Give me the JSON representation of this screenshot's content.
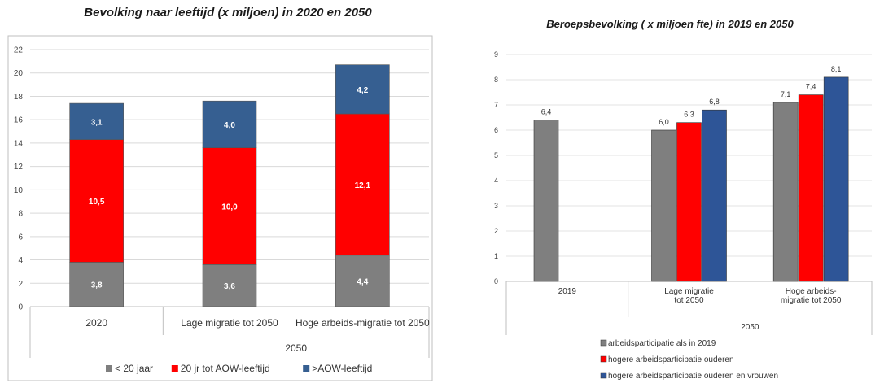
{
  "chart_data": [
    {
      "type": "bar",
      "stacked": true,
      "title": "Bevolking naar leeftijd (x miljoen) in 2020 en 2050",
      "categories": [
        "2020",
        "Lage migratie tot 2050",
        "Hoge arbeids-migratie tot 2050"
      ],
      "group_label": "2050",
      "ylim": [
        0,
        22
      ],
      "yticks": [
        0,
        2,
        4,
        6,
        8,
        10,
        12,
        14,
        16,
        18,
        20,
        22
      ],
      "grid": true,
      "legend_position": "bottom",
      "series": [
        {
          "name": "< 20 jaar",
          "values": [
            3.8,
            3.6,
            4.4
          ],
          "labels": [
            "3,8",
            "3,6",
            "4,4"
          ],
          "color": "#7f7f7f"
        },
        {
          "name": "20 jr tot AOW-leeftijd",
          "values": [
            10.5,
            10.0,
            12.1
          ],
          "labels": [
            "10,5",
            "10,0",
            "12,1"
          ],
          "color": "#ff0000"
        },
        {
          "name": ">AOW-leeftijd",
          "values": [
            3.1,
            4.0,
            4.2
          ],
          "labels": [
            "3,1",
            "4,0",
            "4,2"
          ],
          "color": "#365f91"
        }
      ]
    },
    {
      "type": "bar",
      "stacked": false,
      "title": "Beroepsbevolking ( x miljoen fte) in 2019 en 2050",
      "categories": [
        [
          "2019"
        ],
        [
          "Lage migratie",
          "tot 2050"
        ],
        [
          "Hoge arbeids-",
          "migratie tot 2050"
        ]
      ],
      "group_label": "2050",
      "ylim": [
        0,
        9
      ],
      "yticks": [
        0,
        1,
        2,
        3,
        4,
        5,
        6,
        7,
        8,
        9
      ],
      "grid": true,
      "legend_position": "bottom",
      "series": [
        {
          "name": "arbeidsparticipatie als in 2019",
          "values": [
            6.4,
            6.0,
            7.1
          ],
          "labels": [
            "6,4",
            "6,0",
            "7,1"
          ],
          "color": "#7f7f7f"
        },
        {
          "name": "hogere arbeidsparticipatie ouderen",
          "values": [
            null,
            6.3,
            7.4
          ],
          "labels": [
            null,
            "6,3",
            "7,4"
          ],
          "color": "#ff0000"
        },
        {
          "name": "hogere arbeidsparticipatie ouderen en vrouwen",
          "values": [
            null,
            6.8,
            8.1
          ],
          "labels": [
            null,
            "6,8",
            "8,1"
          ],
          "color": "#2e5597"
        }
      ]
    }
  ]
}
